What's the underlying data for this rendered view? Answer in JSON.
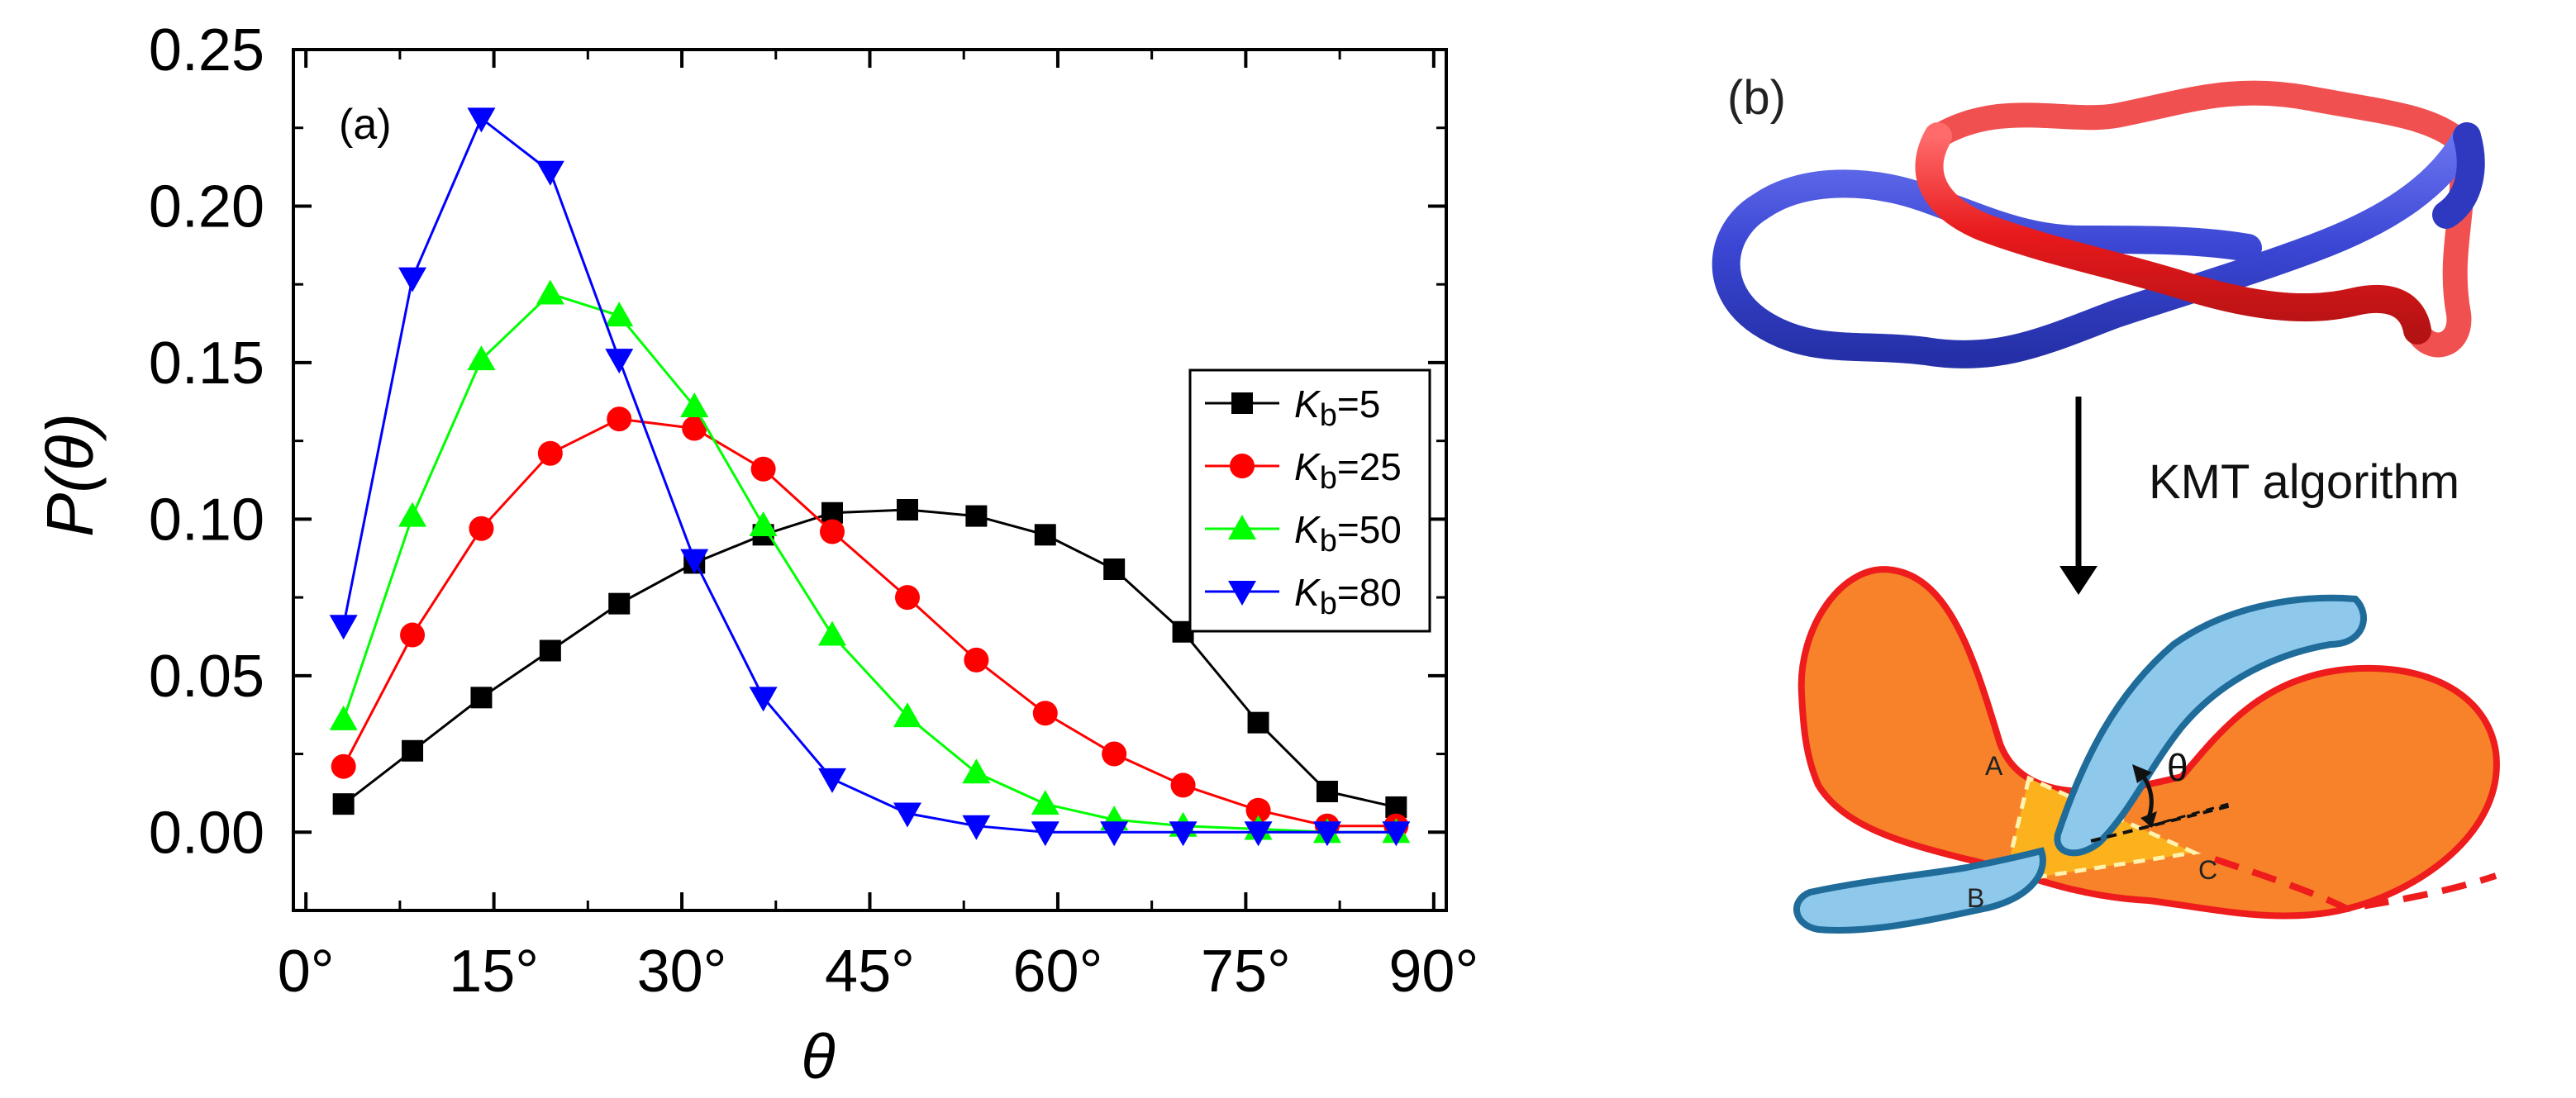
{
  "panel_a": {
    "label": "(a)",
    "chart_data": {
      "type": "line",
      "xlabel": "θ",
      "ylabel": "P(θ)",
      "xlim": [
        -1,
        91
      ],
      "ylim": [
        -0.025,
        0.25
      ],
      "x_ticks": [
        0,
        15,
        30,
        45,
        60,
        75,
        90
      ],
      "x_tick_labels": [
        "0°",
        "15°",
        "30°",
        "45°",
        "60°",
        "75°",
        "90°"
      ],
      "y_ticks": [
        0.0,
        0.05,
        0.1,
        0.15,
        0.2,
        0.25
      ],
      "y_tick_labels": [
        "0.00",
        "0.05",
        "0.10",
        "0.15",
        "0.20",
        "0.25"
      ],
      "grid": false,
      "legend_position": "right-middle",
      "x": [
        3,
        8.5,
        14,
        19.5,
        25,
        31,
        36.5,
        42,
        48,
        53.5,
        59,
        64.5,
        70,
        76,
        81.5,
        87
      ],
      "series": [
        {
          "name": "Kb=5",
          "legend_main": "K",
          "legend_sub": "b",
          "legend_value": "=5",
          "color": "#000000",
          "marker": "square",
          "values": [
            0.009,
            0.026,
            0.043,
            0.058,
            0.073,
            0.086,
            0.095,
            0.102,
            0.103,
            0.101,
            0.095,
            0.084,
            0.064,
            0.035,
            0.013,
            0.008
          ]
        },
        {
          "name": "Kb=25",
          "legend_main": "K",
          "legend_sub": "b",
          "legend_value": "=25",
          "color": "#ff0000",
          "marker": "circle",
          "values": [
            0.021,
            0.063,
            0.097,
            0.121,
            0.132,
            0.129,
            0.116,
            0.096,
            0.075,
            0.055,
            0.038,
            0.025,
            0.015,
            0.007,
            0.002,
            0.002
          ]
        },
        {
          "name": "Kb=50",
          "legend_main": "K",
          "legend_sub": "b",
          "legend_value": "=50",
          "color": "#00ff00",
          "marker": "triangle-up",
          "values": [
            0.036,
            0.101,
            0.151,
            0.172,
            0.165,
            0.136,
            0.098,
            0.063,
            0.037,
            0.019,
            0.009,
            0.004,
            0.002,
            0.001,
            0.0,
            0.0
          ]
        },
        {
          "name": "Kb=80",
          "legend_main": "K",
          "legend_sub": "b",
          "legend_value": "=80",
          "color": "#0000ff",
          "marker": "triangle-down",
          "values": [
            0.066,
            0.177,
            0.228,
            0.211,
            0.151,
            0.087,
            0.043,
            0.017,
            0.006,
            0.002,
            0.0,
            0.0,
            0.0,
            0.0,
            0.0,
            0.0
          ]
        }
      ]
    }
  },
  "panel_b": {
    "label": "(b)",
    "arrow_label": "KMT algorithm",
    "angle_symbol": "θ",
    "points": [
      "A",
      "B",
      "C"
    ],
    "colors": {
      "chain_red": "#e8191c",
      "chain_blue": "#3b47d4",
      "surface_fill": "#f7822a",
      "surface_edge": "#ee1c1c",
      "triangle_fill": "#fbb21d",
      "strand_fill": "#8ec9ec",
      "strand_edge": "#1f6c9a"
    }
  }
}
